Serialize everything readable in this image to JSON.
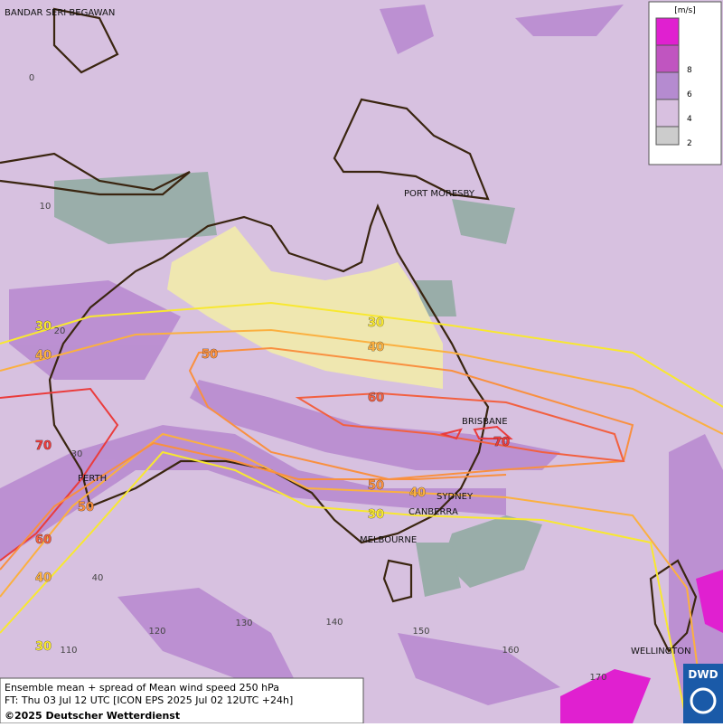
{
  "map": {
    "footer": [
      "Ensemble mean + spread of Mean wind speed 250 hPa",
      "FT: Thu 03 Jul 12 UTC [ICON EPS 2025 Jul 02 12UTC +24h]",
      "©2025 Deutscher Wetterdienst"
    ],
    "logo": "DWD",
    "legend": {
      "unit": "[m/s]",
      "ticks": [
        "8",
        "6",
        "4",
        "2"
      ],
      "colors": [
        "#e020d0",
        "#c055c0",
        "#b58bd0",
        "#d8c0e0"
      ]
    },
    "cities": [
      "BANDAR SERI BEGAWAN",
      "PORT MORESBY",
      "BRISBANE",
      "PERTH",
      "SYDNEY",
      "CANBERRA",
      "MELBOURNE",
      "WELLINGTON"
    ],
    "lat_labels": [
      "0",
      "10",
      "20",
      "30",
      "40"
    ],
    "lon_labels": [
      "110",
      "120",
      "130",
      "140",
      "150",
      "160",
      "170"
    ],
    "contours": [
      {
        "level": 30,
        "color": "#f8e830"
      },
      {
        "level": 40,
        "color": "#fbb040"
      },
      {
        "level": 50,
        "color": "#f99040"
      },
      {
        "level": 60,
        "color": "#f26040"
      },
      {
        "level": 70,
        "color": "#ea3c3c"
      }
    ],
    "contour_labels": [
      30,
      40,
      50,
      30,
      40,
      60,
      70,
      70,
      50,
      40,
      30,
      50,
      60,
      40,
      30
    ]
  }
}
